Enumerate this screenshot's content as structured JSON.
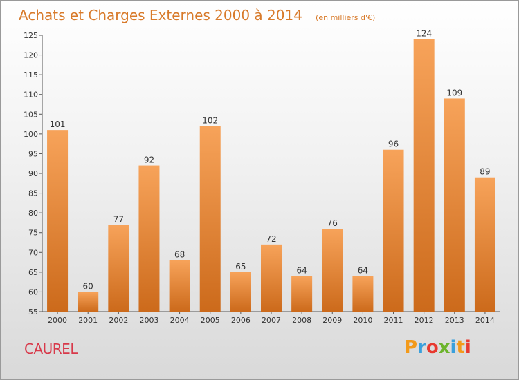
{
  "chart_data": {
    "type": "bar",
    "title": "Achats et Charges Externes 2000 à 2014",
    "subtitle": "(en milliers d'€)",
    "categories": [
      "2000",
      "2001",
      "2002",
      "2003",
      "2004",
      "2005",
      "2006",
      "2007",
      "2008",
      "2009",
      "2010",
      "2011",
      "2012",
      "2013",
      "2014"
    ],
    "values": [
      101,
      60,
      77,
      92,
      68,
      102,
      65,
      72,
      64,
      76,
      64,
      96,
      124,
      109,
      89
    ],
    "ylim": [
      55,
      125
    ],
    "yticks": [
      55,
      60,
      65,
      70,
      75,
      80,
      85,
      90,
      95,
      100,
      105,
      110,
      115,
      120,
      125
    ],
    "grid": false,
    "bar_color_top": "#f7a35a",
    "bar_color_bottom": "#cc6a1b"
  },
  "footer": {
    "place": "CAUREL",
    "logo": "Proxiti",
    "logo_colors": [
      "#f39a1a",
      "#3aa0dc",
      "#e8392f",
      "#6cb42c",
      "#3aa0dc",
      "#f39a1a",
      "#e8392f"
    ]
  }
}
